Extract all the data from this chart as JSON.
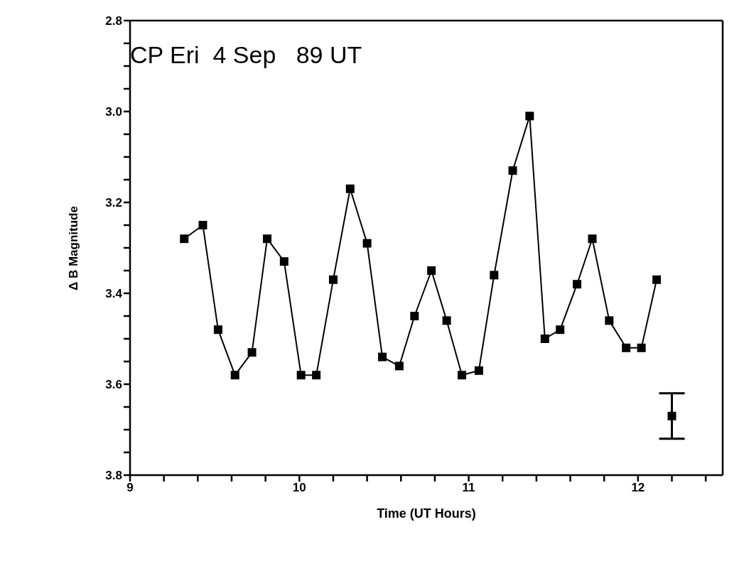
{
  "chart_data": {
    "type": "line",
    "title": "CP Eri  4 Sep   89 UT",
    "xlabel": "Time (UT Hours)",
    "ylabel": "Δ B Magnitude",
    "xlim": [
      9,
      12.5
    ],
    "xticks": [
      9,
      {
        "value": 9.2,
        "label": null
      },
      {
        "value": 9.4,
        "label": null
      },
      {
        "value": 9.6,
        "label": null
      },
      {
        "value": 9.8,
        "label": null
      },
      10,
      {
        "value": 10.2,
        "label": null
      },
      {
        "value": 10.4,
        "label": null
      },
      {
        "value": 10.6,
        "label": null
      },
      {
        "value": 10.8,
        "label": null
      },
      11,
      {
        "value": 11.2,
        "label": null
      },
      {
        "value": 11.4,
        "label": null
      },
      {
        "value": 11.6,
        "label": null
      },
      {
        "value": 11.8,
        "label": null
      },
      12,
      {
        "value": 12.2,
        "label": null
      },
      {
        "value": 12.4,
        "label": null
      }
    ],
    "ylim": [
      3.8,
      2.8
    ],
    "yticks": [
      {
        "value": 2.8,
        "label": "2.8"
      },
      {
        "value": 2.85,
        "label": null
      },
      {
        "value": 2.9,
        "label": null
      },
      {
        "value": 2.95,
        "label": null
      },
      {
        "value": 3.0,
        "label": "3.0"
      },
      {
        "value": 3.05,
        "label": null
      },
      {
        "value": 3.1,
        "label": null
      },
      {
        "value": 3.15,
        "label": null
      },
      {
        "value": 3.2,
        "label": "3.2"
      },
      {
        "value": 3.25,
        "label": null
      },
      {
        "value": 3.3,
        "label": null
      },
      {
        "value": 3.35,
        "label": null
      },
      {
        "value": 3.4,
        "label": "3.4"
      },
      {
        "value": 3.45,
        "label": null
      },
      {
        "value": 3.5,
        "label": null
      },
      {
        "value": 3.55,
        "label": null
      },
      {
        "value": 3.6,
        "label": "3.6"
      },
      {
        "value": 3.65,
        "label": null
      },
      {
        "value": 3.7,
        "label": null
      },
      {
        "value": 3.75,
        "label": null
      },
      {
        "value": 3.8,
        "label": "3.8"
      }
    ],
    "grid": false,
    "marker": "square",
    "line_style": "solid",
    "series": [
      {
        "color": "#000000",
        "x": [
          9.32,
          9.43,
          9.52,
          9.62,
          9.72,
          9.81,
          9.91,
          10.01,
          10.1,
          10.2,
          10.3,
          10.4,
          10.49,
          10.59,
          10.68,
          10.78,
          10.87,
          10.96,
          11.06,
          11.15,
          11.26,
          11.36,
          11.45,
          11.54,
          11.64,
          11.73,
          11.83,
          11.93,
          12.02,
          12.11
        ],
        "values": [
          3.28,
          3.25,
          3.48,
          3.58,
          3.53,
          3.28,
          3.33,
          3.58,
          3.58,
          3.37,
          3.17,
          3.29,
          3.54,
          3.56,
          3.45,
          3.35,
          3.46,
          3.58,
          3.57,
          3.36,
          3.13,
          3.01,
          3.5,
          3.48,
          3.38,
          3.28,
          3.46,
          3.52,
          3.52,
          3.37
        ]
      },
      {
        "type": "scatter",
        "color": "#000000",
        "x": [
          12.2
        ],
        "values": [
          3.67
        ],
        "errors": [
          0.05
        ]
      }
    ]
  }
}
